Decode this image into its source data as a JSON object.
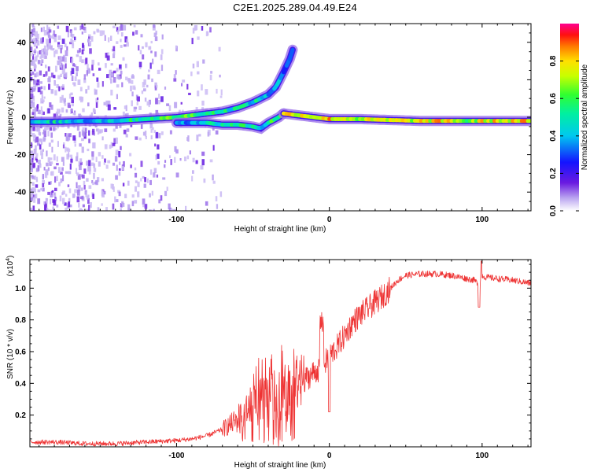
{
  "title": "C2E1.2025.289.04.49.E24",
  "chart_data": [
    {
      "type": "heatmap",
      "title": "C2E1.2025.289.04.49.E24",
      "xlabel": "Height of straight line (km)",
      "ylabel": "Frequency (Hz)",
      "xlim": [
        -196,
        132
      ],
      "ylim": [
        -50,
        50
      ],
      "xticks": [
        -100,
        0,
        100
      ],
      "yticks": [
        -40,
        -20,
        0,
        20,
        40
      ],
      "colorbar": {
        "label": "Normalized spectral amplitude",
        "range": [
          0,
          1
        ],
        "ticks": [
          0.0,
          0.2,
          0.4,
          0.6,
          0.8
        ],
        "colormap": "rainbow"
      },
      "main_band": [
        {
          "x": -196,
          "y": -2.5,
          "amp": 0.35
        },
        {
          "x": -180,
          "y": -2.5,
          "amp": 0.45
        },
        {
          "x": -160,
          "y": -2.0,
          "amp": 0.4
        },
        {
          "x": -140,
          "y": -2.0,
          "amp": 0.45
        },
        {
          "x": -120,
          "y": -1.0,
          "amp": 0.55
        },
        {
          "x": -100,
          "y": 0.0,
          "amp": 0.6
        },
        {
          "x": -90,
          "y": 1.0,
          "amp": 0.6
        },
        {
          "x": -80,
          "y": 2.0,
          "amp": 0.55
        },
        {
          "x": -70,
          "y": 3.0,
          "amp": 0.5
        },
        {
          "x": -60,
          "y": 5.0,
          "amp": 0.5
        },
        {
          "x": -50,
          "y": 8.0,
          "amp": 0.45
        },
        {
          "x": -40,
          "y": 12.0,
          "amp": 0.4
        },
        {
          "x": -35,
          "y": 16.0,
          "amp": 0.35
        },
        {
          "x": -30,
          "y": 24.0,
          "amp": 0.3
        },
        {
          "x": -26,
          "y": 31.0,
          "amp": 0.2
        },
        {
          "x": -24,
          "y": 36.0,
          "amp": 0.15
        }
      ],
      "lower_branch": [
        {
          "x": -100,
          "y": -3.0,
          "amp": 0.4
        },
        {
          "x": -80,
          "y": -3.0,
          "amp": 0.45
        },
        {
          "x": -70,
          "y": -4.0,
          "amp": 0.5
        },
        {
          "x": -60,
          "y": -4.0,
          "amp": 0.55
        },
        {
          "x": -50,
          "y": -5.0,
          "amp": 0.5
        },
        {
          "x": -45,
          "y": -6.0,
          "amp": 0.4
        },
        {
          "x": -40,
          "y": -3.0,
          "amp": 0.55
        },
        {
          "x": -33,
          "y": 0.0,
          "amp": 0.6
        },
        {
          "x": -30,
          "y": 2.0,
          "amp": 0.7
        }
      ],
      "right_band": [
        {
          "x": -30,
          "y": 2.0,
          "amp": 0.75
        },
        {
          "x": -20,
          "y": 1.0,
          "amp": 0.8
        },
        {
          "x": -10,
          "y": 0.0,
          "amp": 0.75
        },
        {
          "x": 0,
          "y": -1.0,
          "amp": 0.8
        },
        {
          "x": 20,
          "y": -1.0,
          "amp": 0.7
        },
        {
          "x": 40,
          "y": -1.5,
          "amp": 0.72
        },
        {
          "x": 60,
          "y": -2.0,
          "amp": 0.75
        },
        {
          "x": 80,
          "y": -2.0,
          "amp": 0.78
        },
        {
          "x": 90,
          "y": -2.0,
          "amp": 0.6
        },
        {
          "x": 100,
          "y": -2.0,
          "amp": 0.75
        },
        {
          "x": 132,
          "y": -2.0,
          "amp": 0.78
        }
      ]
    },
    {
      "type": "line",
      "xlabel": "Height of straight line (km)",
      "ylabel": "SNR (10 * v/v)",
      "y_multiplier_label": "(x10^4)",
      "y_multiplier_base": "(x10",
      "y_multiplier_exp": "4",
      "xlim": [
        -196,
        132
      ],
      "ylim": [
        0,
        1.18
      ],
      "xticks": [
        -100,
        0,
        100
      ],
      "yticks": [
        0.2,
        0.4,
        0.6,
        0.8,
        1.0
      ],
      "color": "#ee3333",
      "series": [
        {
          "x": [
            -196,
            -180,
            -160,
            -140,
            -120,
            -100,
            -90,
            -80,
            -70,
            -60,
            -55,
            -50,
            -45,
            -40,
            -35,
            -30,
            -25,
            -20,
            -15,
            -10,
            -5,
            0,
            5,
            10,
            15,
            20,
            25,
            30,
            35,
            40,
            45,
            50,
            60,
            70,
            80,
            90,
            95,
            98,
            100,
            102,
            110,
            120,
            132
          ],
          "y": [
            0.03,
            0.03,
            0.02,
            0.02,
            0.03,
            0.04,
            0.05,
            0.07,
            0.11,
            0.17,
            0.22,
            0.27,
            0.3,
            0.3,
            0.32,
            0.33,
            0.36,
            0.4,
            0.43,
            0.47,
            0.5,
            0.57,
            0.63,
            0.7,
            0.78,
            0.83,
            0.87,
            0.91,
            0.95,
            1.0,
            1.05,
            1.08,
            1.09,
            1.09,
            1.08,
            1.06,
            1.05,
            1.02,
            1.08,
            1.07,
            1.06,
            1.05,
            1.03
          ]
        }
      ]
    }
  ]
}
